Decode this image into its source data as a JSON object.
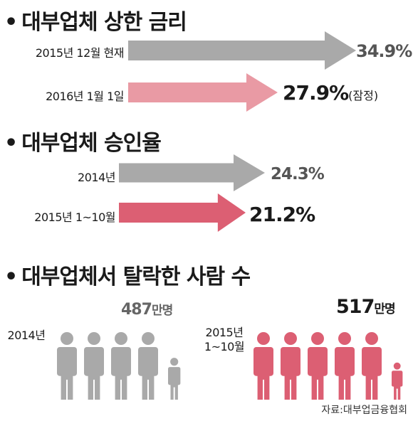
{
  "bullet": "•",
  "sections": {
    "rate": {
      "title": "대부업체 상한 금리"
    },
    "approval": {
      "title": "대부업체 승인율"
    },
    "dropout": {
      "title": "대부업체서 탈락한 사람 수"
    }
  },
  "colors": {
    "gray": "#a9a9a9",
    "light_pink": "#e99aa4",
    "pink": "#dc5f73"
  },
  "chart_data": [
    {
      "type": "bar",
      "title": "대부업체 상한 금리",
      "categories": [
        "2015년 12월 현재",
        "2016년 1월 1일"
      ],
      "values": [
        34.9,
        27.9
      ],
      "value_labels": [
        "34.9%",
        "27.9%"
      ],
      "notes": [
        "",
        "(잠정)"
      ],
      "colors": [
        "#a9a9a9",
        "#e99aa4"
      ]
    },
    {
      "type": "bar",
      "title": "대부업체 승인율",
      "categories": [
        "2014년",
        "2015년 1~10월"
      ],
      "values": [
        24.3,
        21.2
      ],
      "value_labels": [
        "24.3%",
        "21.2%"
      ],
      "colors": [
        "#a9a9a9",
        "#dc5f73"
      ]
    },
    {
      "type": "bar",
      "title": "대부업체서 탈락한 사람 수",
      "categories": [
        "2014년",
        "2015년 1~10월"
      ],
      "values": [
        487,
        517
      ],
      "value_labels": [
        "487",
        "517"
      ],
      "unit": "만명",
      "colors": [
        "#a9a9a9",
        "#dc5f73"
      ]
    }
  ],
  "people_labels": {
    "left": {
      "line1": "2014년"
    },
    "right": {
      "line1": "2015년",
      "line2": "1~10월"
    }
  },
  "source": "자료:대부업금융협회"
}
